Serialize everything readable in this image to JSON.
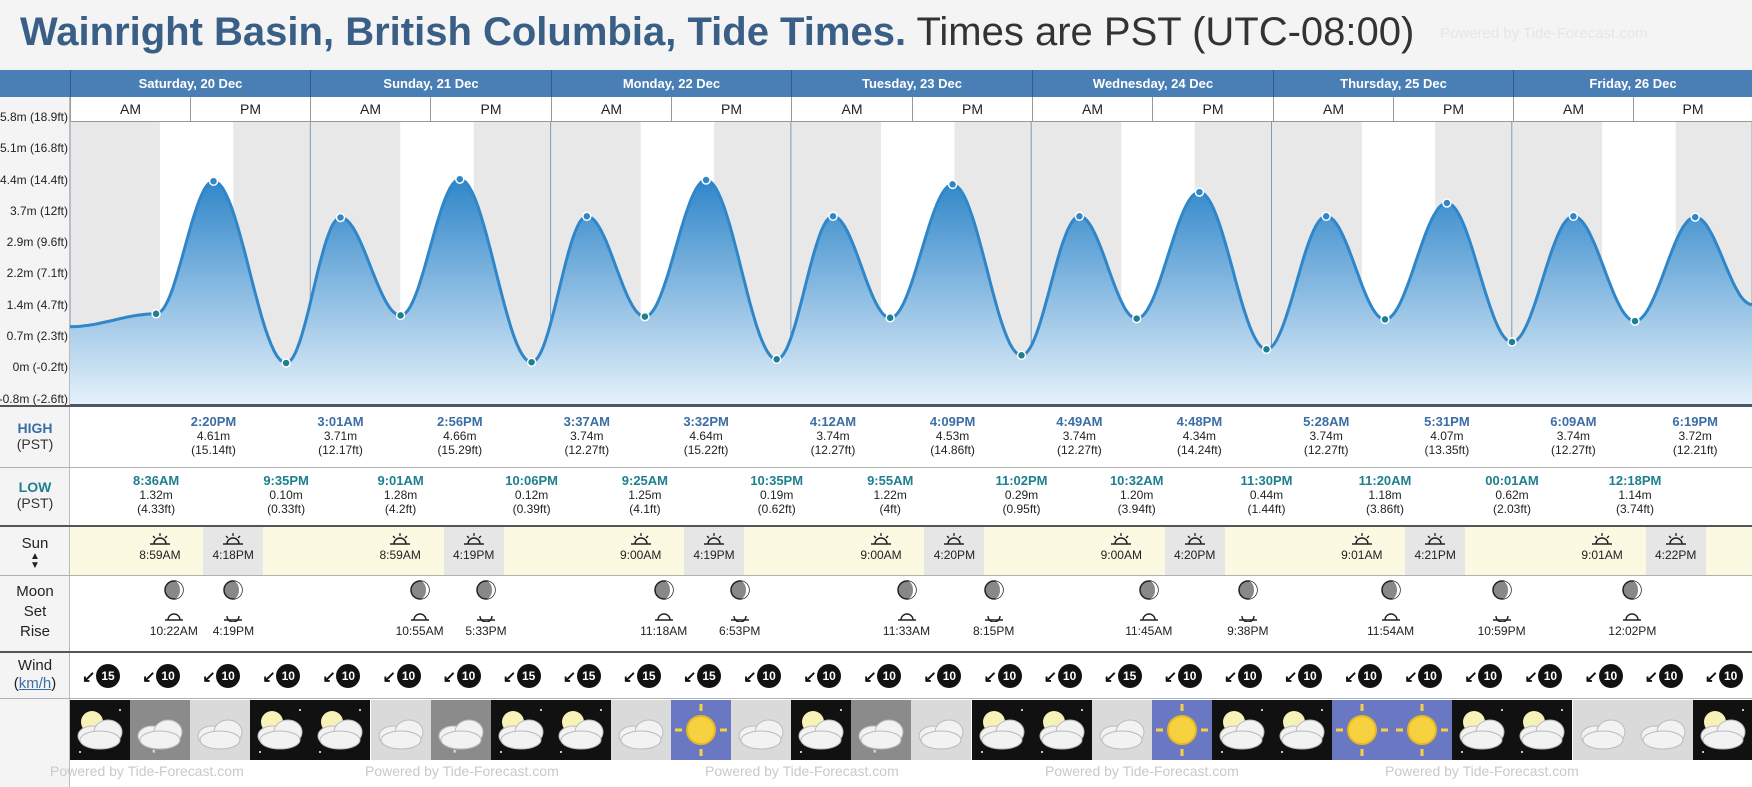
{
  "header": {
    "place": "Wainright Basin, British Columbia, Tide Times.",
    "timezone": "Times are PST (UTC-08:00)",
    "powered_by": "Powered by Tide-Forecast.com"
  },
  "days": [
    {
      "label": "Saturday, 20 Dec"
    },
    {
      "label": "Sunday, 21 Dec"
    },
    {
      "label": "Monday, 22 Dec"
    },
    {
      "label": "Tuesday, 23 Dec"
    },
    {
      "label": "Wednesday, 24 Dec"
    },
    {
      "label": "Thursday, 25 Dec"
    },
    {
      "label": "Friday, 26 Dec"
    }
  ],
  "ampm": {
    "am": "AM",
    "pm": "PM"
  },
  "y_axis_labels": [
    "5.8m (18.9ft)",
    "5.1m (16.8ft)",
    "4.4m (14.4ft)",
    "3.7m (12ft)",
    "2.9m (9.6ft)",
    "2.2m (7.1ft)",
    "1.4m (4.7ft)",
    "0.7m (2.3ft)",
    "0m (-0.2ft)",
    "-0.8m (-2.6ft)"
  ],
  "labels": {
    "high": "HIGH",
    "low": "LOW",
    "pst": "(PST)",
    "sun": "Sun",
    "moon": "Moon",
    "set": "Set",
    "rise": "Rise",
    "wind": "Wind",
    "wind_unit": "km/h"
  },
  "tides": {
    "high": [
      {
        "time": "2:20PM",
        "m": "4.61m",
        "ft": "(15.14ft)"
      },
      {
        "time": "3:01AM",
        "m": "3.71m",
        "ft": "(12.17ft)"
      },
      {
        "time": "2:56PM",
        "m": "4.66m",
        "ft": "(15.29ft)"
      },
      {
        "time": "3:37AM",
        "m": "3.74m",
        "ft": "(12.27ft)"
      },
      {
        "time": "3:32PM",
        "m": "4.64m",
        "ft": "(15.22ft)"
      },
      {
        "time": "4:12AM",
        "m": "3.74m",
        "ft": "(12.27ft)"
      },
      {
        "time": "4:09PM",
        "m": "4.53m",
        "ft": "(14.86ft)"
      },
      {
        "time": "4:49AM",
        "m": "3.74m",
        "ft": "(12.27ft)"
      },
      {
        "time": "4:48PM",
        "m": "4.34m",
        "ft": "(14.24ft)"
      },
      {
        "time": "5:28AM",
        "m": "3.74m",
        "ft": "(12.27ft)"
      },
      {
        "time": "5:31PM",
        "m": "4.07m",
        "ft": "(13.35ft)"
      },
      {
        "time": "6:09AM",
        "m": "3.74m",
        "ft": "(12.27ft)"
      },
      {
        "time": "6:19PM",
        "m": "3.72m",
        "ft": "(12.21ft)"
      }
    ],
    "low": [
      {
        "time": "8:36AM",
        "m": "1.32m",
        "ft": "(4.33ft)"
      },
      {
        "time": "9:35PM",
        "m": "0.10m",
        "ft": "(0.33ft)"
      },
      {
        "time": "9:01AM",
        "m": "1.28m",
        "ft": "(4.2ft)"
      },
      {
        "time": "10:06PM",
        "m": "0.12m",
        "ft": "(0.39ft)"
      },
      {
        "time": "9:25AM",
        "m": "1.25m",
        "ft": "(4.1ft)"
      },
      {
        "time": "10:35PM",
        "m": "0.19m",
        "ft": "(0.62ft)"
      },
      {
        "time": "9:55AM",
        "m": "1.22m",
        "ft": "(4ft)"
      },
      {
        "time": "11:02PM",
        "m": "0.29m",
        "ft": "(0.95ft)"
      },
      {
        "time": "10:32AM",
        "m": "1.20m",
        "ft": "(3.94ft)"
      },
      {
        "time": "11:30PM",
        "m": "0.44m",
        "ft": "(1.44ft)"
      },
      {
        "time": "11:20AM",
        "m": "1.18m",
        "ft": "(3.86ft)"
      },
      {
        "time": "00:01AM",
        "m": "0.62m",
        "ft": "(2.03ft)"
      },
      {
        "time": "12:18PM",
        "m": "1.14m",
        "ft": "(3.74ft)"
      }
    ]
  },
  "sun": [
    {
      "rise": "8:59AM",
      "set": "4:18PM"
    },
    {
      "rise": "8:59AM",
      "set": "4:19PM"
    },
    {
      "rise": "9:00AM",
      "set": "4:19PM"
    },
    {
      "rise": "9:00AM",
      "set": "4:20PM"
    },
    {
      "rise": "9:00AM",
      "set": "4:20PM"
    },
    {
      "rise": "9:01AM",
      "set": "4:21PM"
    },
    {
      "rise": "9:01AM",
      "set": "4:22PM"
    }
  ],
  "moon": [
    {
      "time": "10:22AM",
      "kind": "rise"
    },
    {
      "time": "4:19PM",
      "kind": "set"
    },
    {
      "time": "10:55AM",
      "kind": "rise"
    },
    {
      "time": "5:33PM",
      "kind": "set"
    },
    {
      "time": "11:18AM",
      "kind": "rise"
    },
    {
      "time": "6:53PM",
      "kind": "set"
    },
    {
      "time": "11:33AM",
      "kind": "rise"
    },
    {
      "time": "8:15PM",
      "kind": "set"
    },
    {
      "time": "11:45AM",
      "kind": "rise"
    },
    {
      "time": "9:38PM",
      "kind": "set"
    },
    {
      "time": "11:54AM",
      "kind": "rise"
    },
    {
      "time": "10:59PM",
      "kind": "set"
    },
    {
      "time": "12:02PM",
      "kind": "rise"
    }
  ],
  "wind": [
    "15",
    "10",
    "10",
    "10",
    "10",
    "10",
    "10",
    "15",
    "15",
    "15",
    "15",
    "10",
    "10",
    "10",
    "10",
    "10",
    "10",
    "15",
    "10",
    "10",
    "10",
    "10",
    "10",
    "10",
    "10",
    "10",
    "10",
    "10"
  ],
  "weather": [
    "night",
    "overcast",
    "cloudy",
    "night",
    "night",
    "cloudy",
    "overcast",
    "night",
    "night",
    "cloudy",
    "sunny",
    "cloudy",
    "night",
    "overcast",
    "cloudy",
    "night",
    "night",
    "cloudy",
    "sunny",
    "night",
    "night",
    "sunny",
    "sunny",
    "night",
    "night",
    "cloudy",
    "cloudy",
    "night"
  ],
  "colors": {
    "accent": "#4a7fb5",
    "tide_fill": "#3a8fcf",
    "high_text": "#3a6ea5",
    "low_text": "#1d7f8f"
  }
}
